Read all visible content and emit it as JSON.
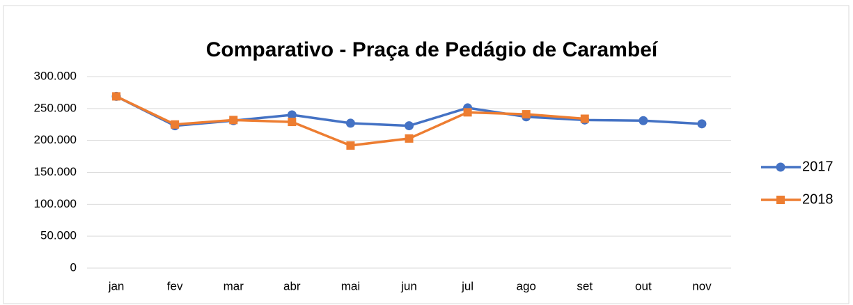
{
  "chart_data": {
    "type": "line",
    "title": "Comparativo - Praça de Pedágio de Carambeí",
    "categories": [
      "jan",
      "fev",
      "mar",
      "abr",
      "mai",
      "jun",
      "jul",
      "ago",
      "set",
      "out",
      "nov"
    ],
    "series": [
      {
        "name": "2017",
        "color": "#4472c4",
        "marker": "circle",
        "values": [
          269000,
          223000,
          231000,
          240000,
          227000,
          223000,
          251000,
          237000,
          232000,
          231000,
          226000
        ]
      },
      {
        "name": "2018",
        "color": "#ed7d31",
        "marker": "square",
        "values": [
          269000,
          225000,
          232000,
          229000,
          192000,
          203000,
          244000,
          241000,
          234000,
          null,
          null
        ]
      }
    ],
    "ylim": [
      0,
      300000
    ],
    "yticks": [
      0,
      {
        "value": 50000,
        "label": "50.000"
      },
      {
        "value": 100000,
        "label": "100.000"
      },
      {
        "value": 150000,
        "label": "150.000"
      },
      {
        "value": 200000,
        "label": "200.000"
      },
      {
        "value": 250000,
        "label": "250.000"
      },
      {
        "value": 300000,
        "label": "300.000"
      }
    ],
    "grid": true,
    "legend": "right"
  }
}
